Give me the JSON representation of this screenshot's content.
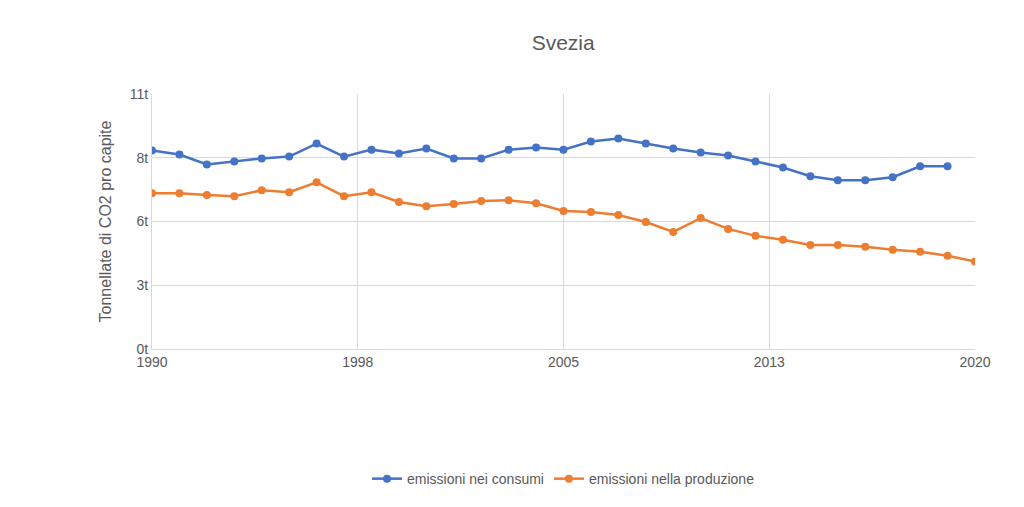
{
  "chart_data": {
    "type": "line",
    "title": "Svezia",
    "y_label": "Tonnellate di CO2 pro capite",
    "x": [
      1990,
      1991,
      1992,
      1993,
      1994,
      1995,
      1996,
      1997,
      1998,
      1999,
      2000,
      2001,
      2002,
      2003,
      2004,
      2005,
      2006,
      2007,
      2008,
      2009,
      2010,
      2011,
      2012,
      2013,
      2014,
      2015,
      2016,
      2017,
      2018,
      2019,
      2020
    ],
    "series": [
      {
        "name": "emissioni nei consumi",
        "color": "#4472c4",
        "marker": "circle",
        "line_style": "solid",
        "values": [
          8.56,
          8.39,
          7.96,
          8.09,
          8.22,
          8.3,
          8.86,
          8.3,
          8.6,
          8.43,
          8.65,
          8.22,
          8.22,
          8.6,
          8.69,
          8.6,
          8.95,
          9.08,
          8.86,
          8.65,
          8.48,
          8.35,
          8.09,
          7.83,
          7.45,
          7.28,
          7.28,
          7.41,
          7.88,
          7.88,
          null
        ]
      },
      {
        "name": "emissioni nella produzione",
        "color": "#ed7d31",
        "marker": "circle",
        "line_style": "solid",
        "values": [
          6.72,
          6.72,
          6.64,
          6.59,
          6.85,
          6.76,
          7.19,
          6.59,
          6.76,
          6.34,
          6.16,
          6.25,
          6.38,
          6.42,
          6.29,
          5.95,
          5.91,
          5.78,
          5.48,
          5.05,
          5.65,
          5.18,
          4.88,
          4.71,
          4.49,
          4.49,
          4.41,
          4.28,
          4.2,
          4.02,
          3.77
        ]
      }
    ],
    "xlim": [
      1990,
      2020
    ],
    "xticks": [
      1990,
      {
        "value": 1997.5,
        "label": "1998"
      },
      2005,
      {
        "value": 2012.5,
        "label": "2013"
      },
      2020
    ],
    "ylim": [
      0,
      11
    ],
    "yticks": [
      {
        "value": 0,
        "label": "0t"
      },
      {
        "value": 2.75,
        "label": "3t"
      },
      {
        "value": 5.5,
        "label": "6t"
      },
      {
        "value": 8.25,
        "label": "8t"
      },
      {
        "value": 11,
        "label": "11t"
      }
    ],
    "grid": true,
    "legend": "bottom"
  }
}
